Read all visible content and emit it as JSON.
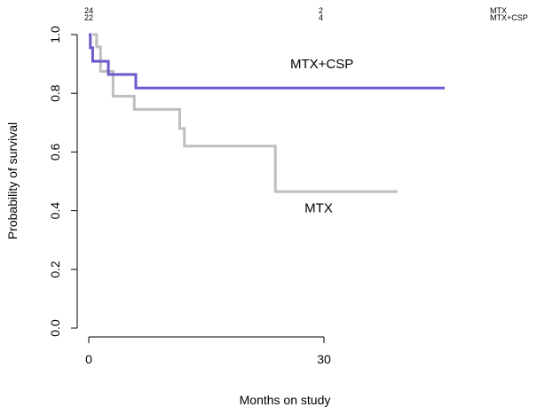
{
  "chart_data": {
    "type": "line",
    "subtype": "kaplan-meier step survival curves",
    "xlabel": "Months on study",
    "ylabel": "Probability of survival",
    "xlim": [
      0,
      45
    ],
    "ylim": [
      0,
      1
    ],
    "x_ticks": [
      0,
      30
    ],
    "x_tick_labels": [
      "0",
      "30"
    ],
    "y_ticks": [
      0,
      0.2,
      0.4,
      0.6,
      0.8,
      1
    ],
    "y_tick_labels": [
      "0.0",
      "0.2",
      "0.4",
      "0.6",
      "0.8",
      "1.0"
    ],
    "grid": false,
    "legend": "none",
    "series": [
      {
        "name": "MTX",
        "color": "#bebebe",
        "steps": [
          {
            "x": 0.5,
            "y": 1.0
          },
          {
            "x": 1.0,
            "y": 0.958
          },
          {
            "x": 1.5,
            "y": 0.875
          },
          {
            "x": 2.8,
            "y": 0.875
          },
          {
            "x": 3.1,
            "y": 0.79
          },
          {
            "x": 5.8,
            "y": 0.745
          },
          {
            "x": 11.6,
            "y": 0.68
          },
          {
            "x": 12.2,
            "y": 0.62
          },
          {
            "x": 23.8,
            "y": 0.465
          }
        ],
        "end_x": 39.4
      },
      {
        "name": "MTX+CSP",
        "color": "#6a5acd",
        "steps": [
          {
            "x": 0.0,
            "y": 1.0
          },
          {
            "x": 0.2,
            "y": 0.955
          },
          {
            "x": 0.5,
            "y": 0.909
          },
          {
            "x": 2.5,
            "y": 0.864
          },
          {
            "x": 6.0,
            "y": 0.818
          }
        ],
        "end_x": 45.4
      }
    ],
    "annotations": [
      {
        "text": "MTX+CSP",
        "x": 30,
        "y": 0.9
      },
      {
        "text": "MTX",
        "x": 29,
        "y": 0.41
      }
    ],
    "risk_table": {
      "times": [
        0,
        30
      ],
      "rows": [
        {
          "group": "MTX",
          "counts": [
            "24",
            "2"
          ]
        },
        {
          "group": "MTX+CSP",
          "counts": [
            "22",
            "4"
          ]
        }
      ]
    }
  }
}
